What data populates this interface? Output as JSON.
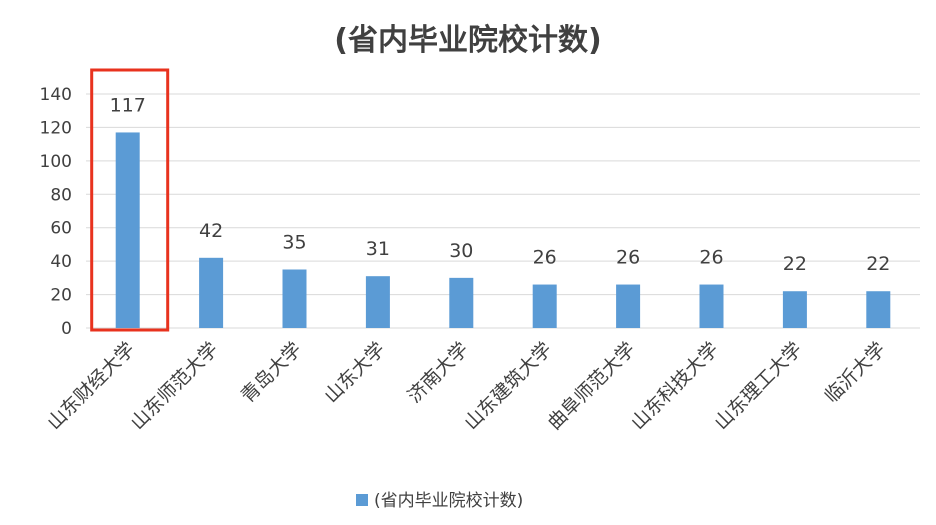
{
  "chart_data": {
    "type": "bar",
    "title": "(省内毕业院校计数)",
    "categories": [
      "山东财经大学",
      "山东师范大学",
      "青岛大学",
      "山东大学",
      "济南大学",
      "山东建筑大学",
      "曲阜师范大学",
      "山东科技大学",
      "山东理工大学",
      "临沂大学"
    ],
    "series": [
      {
        "name": "(省内毕业院校计数)",
        "values": [
          117,
          42,
          35,
          31,
          30,
          26,
          26,
          26,
          22,
          22
        ]
      }
    ],
    "yticks": [
      0,
      20,
      40,
      60,
      80,
      100,
      120,
      140
    ],
    "ylim": [
      0,
      140
    ],
    "xlabel": "",
    "ylabel": "",
    "grid": true,
    "legend_position": "bottom",
    "highlighted_category": "山东财经大学",
    "colors": {
      "bar": "#5b9bd5",
      "highlight": "#e8321e",
      "grid": "#d9d9d9"
    }
  }
}
